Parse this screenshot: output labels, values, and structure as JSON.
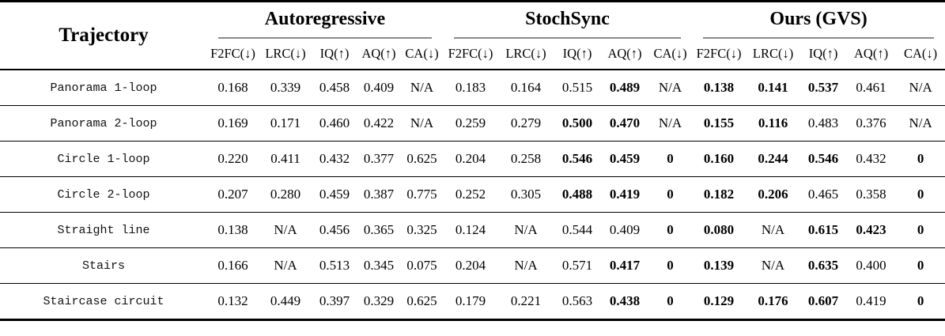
{
  "table": {
    "trajectory_header": "Trajectory",
    "groups": [
      {
        "label": "Autoregressive"
      },
      {
        "label": "StochSync"
      },
      {
        "label": "Ours (GVS)"
      }
    ],
    "metric_headers": [
      "F2FC(↓)",
      "LRC(↓)",
      "IQ(↑)",
      "AQ(↑)",
      "CA(↓)"
    ],
    "rule_color": "#8a8a8a",
    "rows": [
      {
        "trajectory": "Panorama 1-loop",
        "values": [
          {
            "text": "0.168",
            "bold": false
          },
          {
            "text": "0.339",
            "bold": false
          },
          {
            "text": "0.458",
            "bold": false
          },
          {
            "text": "0.409",
            "bold": false
          },
          {
            "text": "N/A",
            "bold": false
          },
          {
            "text": "0.183",
            "bold": false
          },
          {
            "text": "0.164",
            "bold": false
          },
          {
            "text": "0.515",
            "bold": false
          },
          {
            "text": "0.489",
            "bold": true
          },
          {
            "text": "N/A",
            "bold": false
          },
          {
            "text": "0.138",
            "bold": true
          },
          {
            "text": "0.141",
            "bold": true
          },
          {
            "text": "0.537",
            "bold": true
          },
          {
            "text": "0.461",
            "bold": false
          },
          {
            "text": "N/A",
            "bold": false
          }
        ]
      },
      {
        "trajectory": "Panorama 2-loop",
        "values": [
          {
            "text": "0.169",
            "bold": false
          },
          {
            "text": "0.171",
            "bold": false
          },
          {
            "text": "0.460",
            "bold": false
          },
          {
            "text": "0.422",
            "bold": false
          },
          {
            "text": "N/A",
            "bold": false
          },
          {
            "text": "0.259",
            "bold": false
          },
          {
            "text": "0.279",
            "bold": false
          },
          {
            "text": "0.500",
            "bold": true
          },
          {
            "text": "0.470",
            "bold": true
          },
          {
            "text": "N/A",
            "bold": false
          },
          {
            "text": "0.155",
            "bold": true
          },
          {
            "text": "0.116",
            "bold": true
          },
          {
            "text": "0.483",
            "bold": false
          },
          {
            "text": "0.376",
            "bold": false
          },
          {
            "text": "N/A",
            "bold": false
          }
        ]
      },
      {
        "trajectory": "Circle 1-loop",
        "values": [
          {
            "text": "0.220",
            "bold": false
          },
          {
            "text": "0.411",
            "bold": false
          },
          {
            "text": "0.432",
            "bold": false
          },
          {
            "text": "0.377",
            "bold": false
          },
          {
            "text": "0.625",
            "bold": false
          },
          {
            "text": "0.204",
            "bold": false
          },
          {
            "text": "0.258",
            "bold": false
          },
          {
            "text": "0.546",
            "bold": true
          },
          {
            "text": "0.459",
            "bold": true
          },
          {
            "text": "0",
            "bold": true
          },
          {
            "text": "0.160",
            "bold": true
          },
          {
            "text": "0.244",
            "bold": true
          },
          {
            "text": "0.546",
            "bold": true
          },
          {
            "text": "0.432",
            "bold": false
          },
          {
            "text": "0",
            "bold": true
          }
        ]
      },
      {
        "trajectory": "Circle 2-loop",
        "values": [
          {
            "text": "0.207",
            "bold": false
          },
          {
            "text": "0.280",
            "bold": false
          },
          {
            "text": "0.459",
            "bold": false
          },
          {
            "text": "0.387",
            "bold": false
          },
          {
            "text": "0.775",
            "bold": false
          },
          {
            "text": "0.252",
            "bold": false
          },
          {
            "text": "0.305",
            "bold": false
          },
          {
            "text": "0.488",
            "bold": true
          },
          {
            "text": "0.419",
            "bold": true
          },
          {
            "text": "0",
            "bold": true
          },
          {
            "text": "0.182",
            "bold": true
          },
          {
            "text": "0.206",
            "bold": true
          },
          {
            "text": "0.465",
            "bold": false
          },
          {
            "text": "0.358",
            "bold": false
          },
          {
            "text": "0",
            "bold": true
          }
        ]
      },
      {
        "trajectory": "Straight line",
        "values": [
          {
            "text": "0.138",
            "bold": false
          },
          {
            "text": "N/A",
            "bold": false
          },
          {
            "text": "0.456",
            "bold": false
          },
          {
            "text": "0.365",
            "bold": false
          },
          {
            "text": "0.325",
            "bold": false
          },
          {
            "text": "0.124",
            "bold": false
          },
          {
            "text": "N/A",
            "bold": false
          },
          {
            "text": "0.544",
            "bold": false
          },
          {
            "text": "0.409",
            "bold": false
          },
          {
            "text": "0",
            "bold": true
          },
          {
            "text": "0.080",
            "bold": true
          },
          {
            "text": "N/A",
            "bold": false
          },
          {
            "text": "0.615",
            "bold": true
          },
          {
            "text": "0.423",
            "bold": true
          },
          {
            "text": "0",
            "bold": true
          }
        ]
      },
      {
        "trajectory": "Stairs",
        "values": [
          {
            "text": "0.166",
            "bold": false
          },
          {
            "text": "N/A",
            "bold": false
          },
          {
            "text": "0.513",
            "bold": false
          },
          {
            "text": "0.345",
            "bold": false
          },
          {
            "text": "0.075",
            "bold": false
          },
          {
            "text": "0.204",
            "bold": false
          },
          {
            "text": "N/A",
            "bold": false
          },
          {
            "text": "0.571",
            "bold": false
          },
          {
            "text": "0.417",
            "bold": true
          },
          {
            "text": "0",
            "bold": true
          },
          {
            "text": "0.139",
            "bold": true
          },
          {
            "text": "N/A",
            "bold": false
          },
          {
            "text": "0.635",
            "bold": true
          },
          {
            "text": "0.400",
            "bold": false
          },
          {
            "text": "0",
            "bold": true
          }
        ]
      },
      {
        "trajectory": "Staircase circuit",
        "values": [
          {
            "text": "0.132",
            "bold": false
          },
          {
            "text": "0.449",
            "bold": false
          },
          {
            "text": "0.397",
            "bold": false
          },
          {
            "text": "0.329",
            "bold": false
          },
          {
            "text": "0.625",
            "bold": false
          },
          {
            "text": "0.179",
            "bold": false
          },
          {
            "text": "0.221",
            "bold": false
          },
          {
            "text": "0.563",
            "bold": false
          },
          {
            "text": "0.438",
            "bold": true
          },
          {
            "text": "0",
            "bold": true
          },
          {
            "text": "0.129",
            "bold": true
          },
          {
            "text": "0.176",
            "bold": true
          },
          {
            "text": "0.607",
            "bold": true
          },
          {
            "text": "0.419",
            "bold": false
          },
          {
            "text": "0",
            "bold": true
          }
        ]
      }
    ]
  }
}
